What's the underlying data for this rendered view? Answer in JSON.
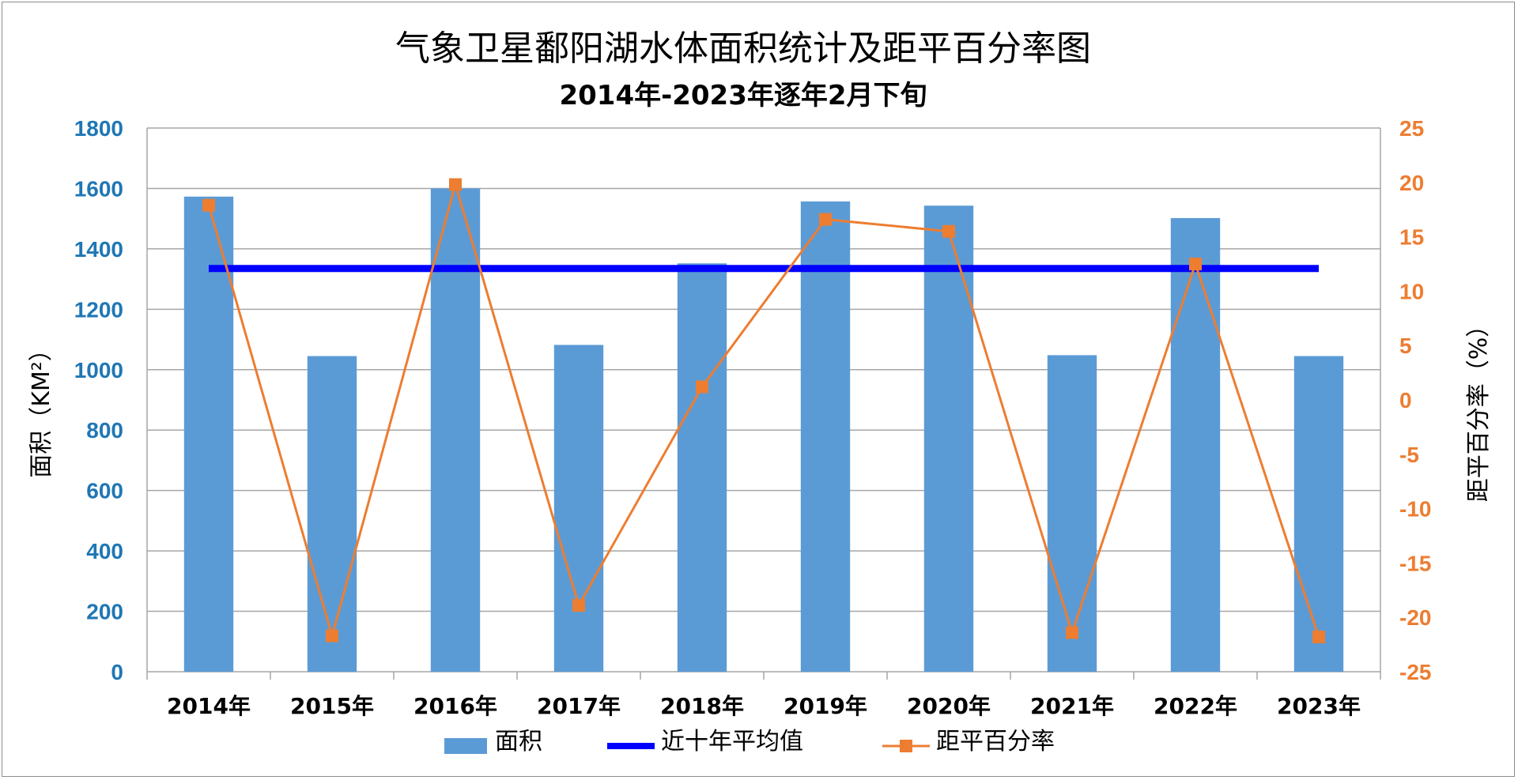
{
  "chart_data": {
    "type": "bar",
    "title": "气象卫星鄱阳湖水体面积统计及距平百分率图",
    "subtitle": "2014年-2023年逐年2月下旬",
    "categories": [
      "2014年",
      "2015年",
      "2016年",
      "2017年",
      "2018年",
      "2019年",
      "2020年",
      "2021年",
      "2022年",
      "2023年"
    ],
    "series": [
      {
        "name": "面积",
        "type": "bar",
        "axis": "left",
        "color": "#5b9bd5",
        "values": [
          1573,
          1045,
          1600,
          1082,
          1352,
          1557,
          1543,
          1048,
          1502,
          1045
        ]
      },
      {
        "name": "近十年平均值",
        "type": "line",
        "axis": "left",
        "color": "#0000ff",
        "values": [
          1335,
          1335,
          1335,
          1335,
          1335,
          1335,
          1335,
          1335,
          1335,
          1335
        ]
      },
      {
        "name": "距平百分率",
        "type": "line",
        "axis": "right",
        "color": "#ed7d31",
        "marker": "square",
        "values": [
          17.9,
          -21.7,
          19.8,
          -18.9,
          1.2,
          16.6,
          15.5,
          -21.4,
          12.5,
          -21.8
        ]
      }
    ],
    "ylabel": "面积（KM²）",
    "ylabel_right": "距平百分率（%）",
    "ylim": [
      0,
      1800
    ],
    "y_ticks": [
      0,
      200,
      400,
      600,
      800,
      1000,
      1200,
      1400,
      1600,
      1800
    ],
    "ylim_right": [
      -25,
      25
    ],
    "y_ticks_right": [
      -25,
      -20,
      -15,
      -10,
      -5,
      0,
      5,
      10,
      15,
      20,
      25
    ],
    "grid": true,
    "legend_position": "bottom",
    "colors": {
      "left_axis": "#1f77b4",
      "right_axis": "#ed7d31",
      "grid": "#a6a6a6"
    }
  }
}
